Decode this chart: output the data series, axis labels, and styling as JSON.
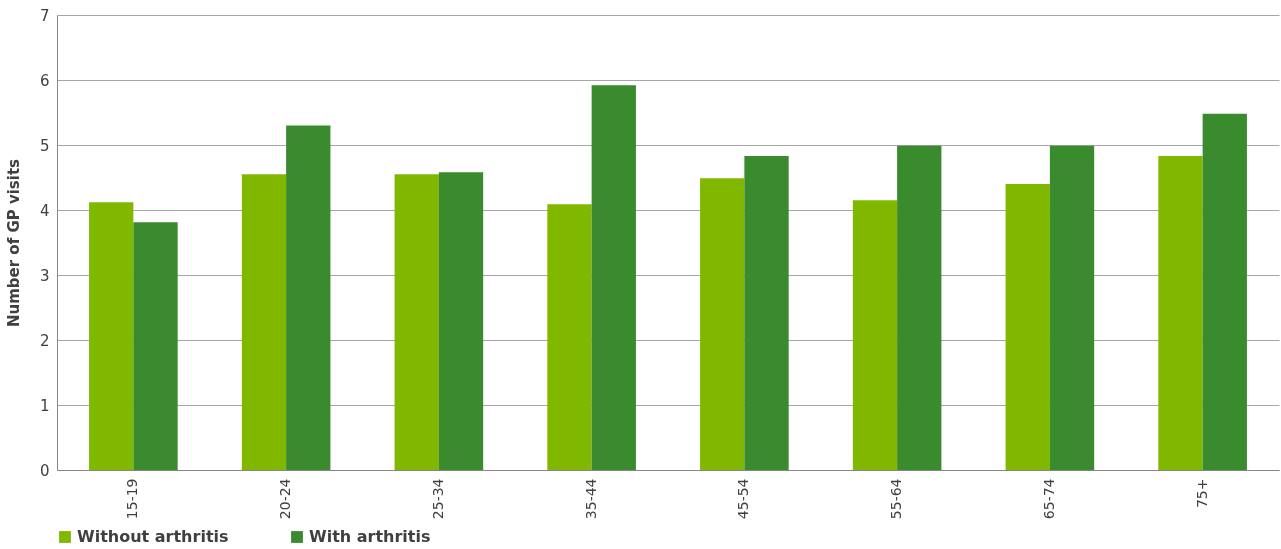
{
  "chart_data": {
    "type": "bar",
    "ylabel": "Number of GP visits",
    "categories": [
      "15-19",
      "20-24",
      "25-34",
      "35-44",
      "45-54",
      "55-64",
      "65-74",
      "75+"
    ],
    "series": [
      {
        "name": "Without arthritis",
        "color": "#80b800",
        "values": [
          4.12,
          4.55,
          4.55,
          4.09,
          4.49,
          4.15,
          4.4,
          4.83
        ]
      },
      {
        "name": "With arthritis",
        "color": "#3a8a2e",
        "values": [
          3.81,
          5.3,
          4.58,
          5.92,
          4.83,
          4.99,
          4.99,
          5.48
        ]
      }
    ],
    "ylim": [
      0,
      7
    ],
    "yticks": [
      0,
      1,
      2,
      3,
      4,
      5,
      6,
      7
    ],
    "grid": "y",
    "legend": "bottom"
  }
}
